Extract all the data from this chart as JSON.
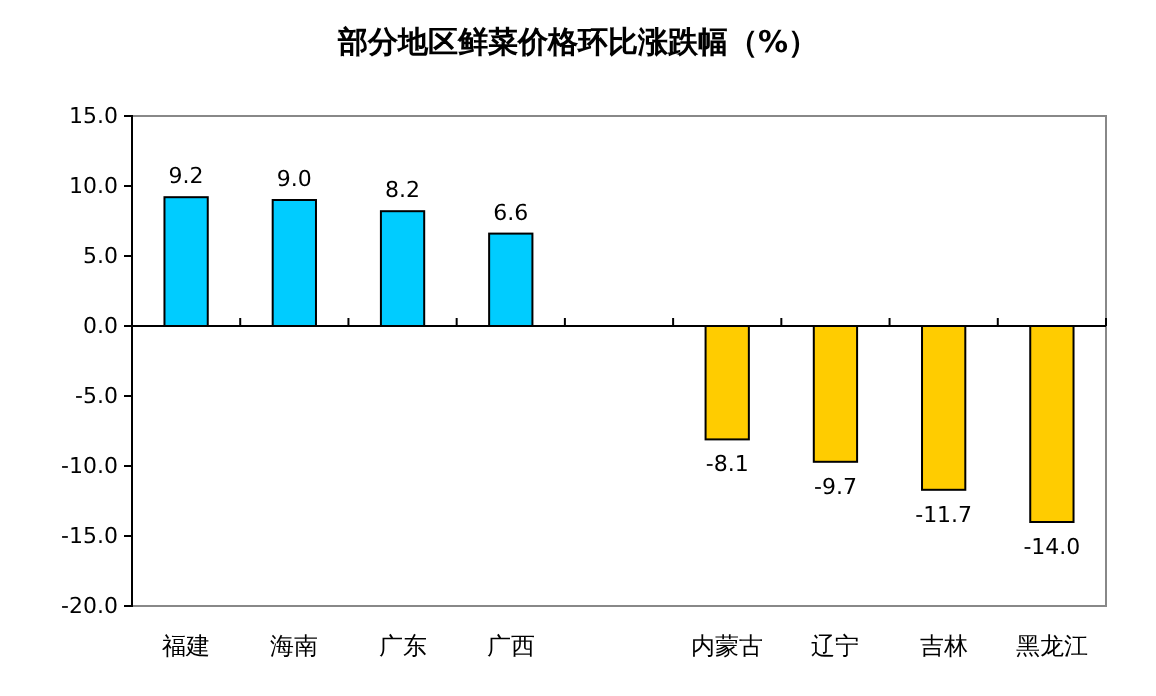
{
  "chart_data": {
    "type": "bar",
    "title": "部分地区鲜菜价格环比涨跌幅（%）",
    "categories": [
      "福建",
      "海南",
      "广东",
      "广西",
      null,
      "内蒙古",
      "辽宁",
      "吉林",
      "黑龙江"
    ],
    "values": [
      9.2,
      9.0,
      8.2,
      6.6,
      null,
      -8.1,
      -9.7,
      -11.7,
      -14.0
    ],
    "value_labels": [
      "9.2",
      "9.0",
      "8.2",
      "6.6",
      null,
      "-8.1",
      "-9.7",
      "-11.7",
      "-14.0"
    ],
    "colors": [
      "#00ccff",
      "#00ccff",
      "#00ccff",
      "#00ccff",
      null,
      "#ffcc00",
      "#ffcc00",
      "#ffcc00",
      "#ffcc00"
    ],
    "ylim": [
      -20,
      15
    ],
    "yticks": [
      {
        "value": -20,
        "label": "-20.0"
      },
      {
        "value": -15,
        "label": "-15.0"
      },
      {
        "value": -10,
        "label": "-10.0"
      },
      {
        "value": -5,
        "label": "-5.0"
      },
      {
        "value": 0,
        "label": "0.0"
      },
      {
        "value": 5,
        "label": "5.0"
      },
      {
        "value": 10,
        "label": "10.0"
      },
      {
        "value": 15,
        "label": "15.0"
      }
    ]
  }
}
